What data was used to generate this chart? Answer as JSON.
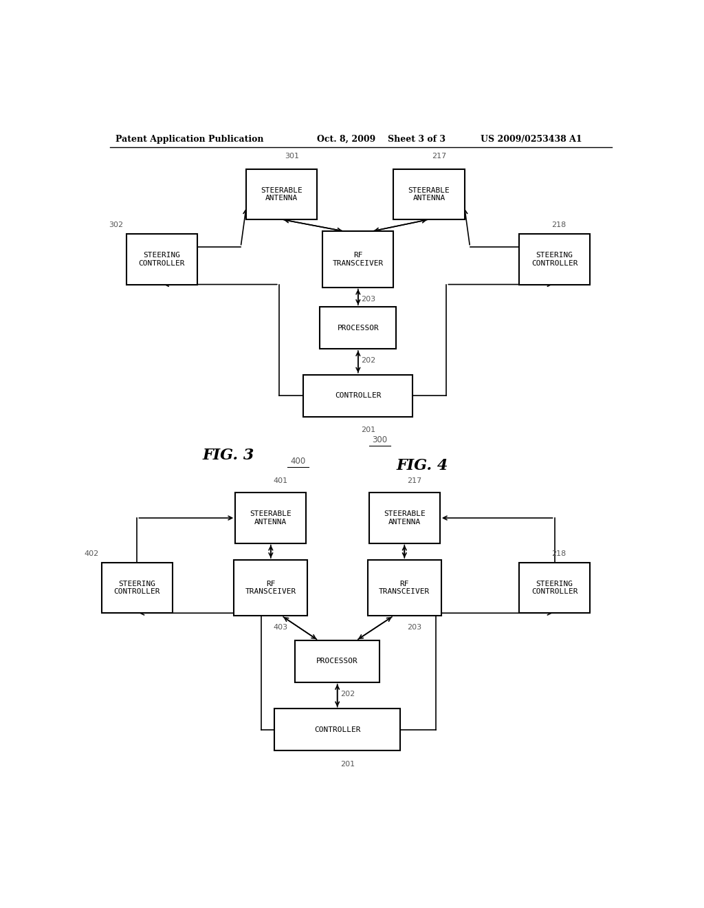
{
  "background_color": "#ffffff",
  "header_text": "Patent Application Publication",
  "header_date": "Oct. 8, 2009",
  "header_sheet": "Sheet 3 of 3",
  "header_patent": "US 2009/0253438 A1",
  "fig3_label": "FIG. 3",
  "fig3_ref": "300",
  "fig4_label": "FIG. 4",
  "fig4_ref": "400"
}
